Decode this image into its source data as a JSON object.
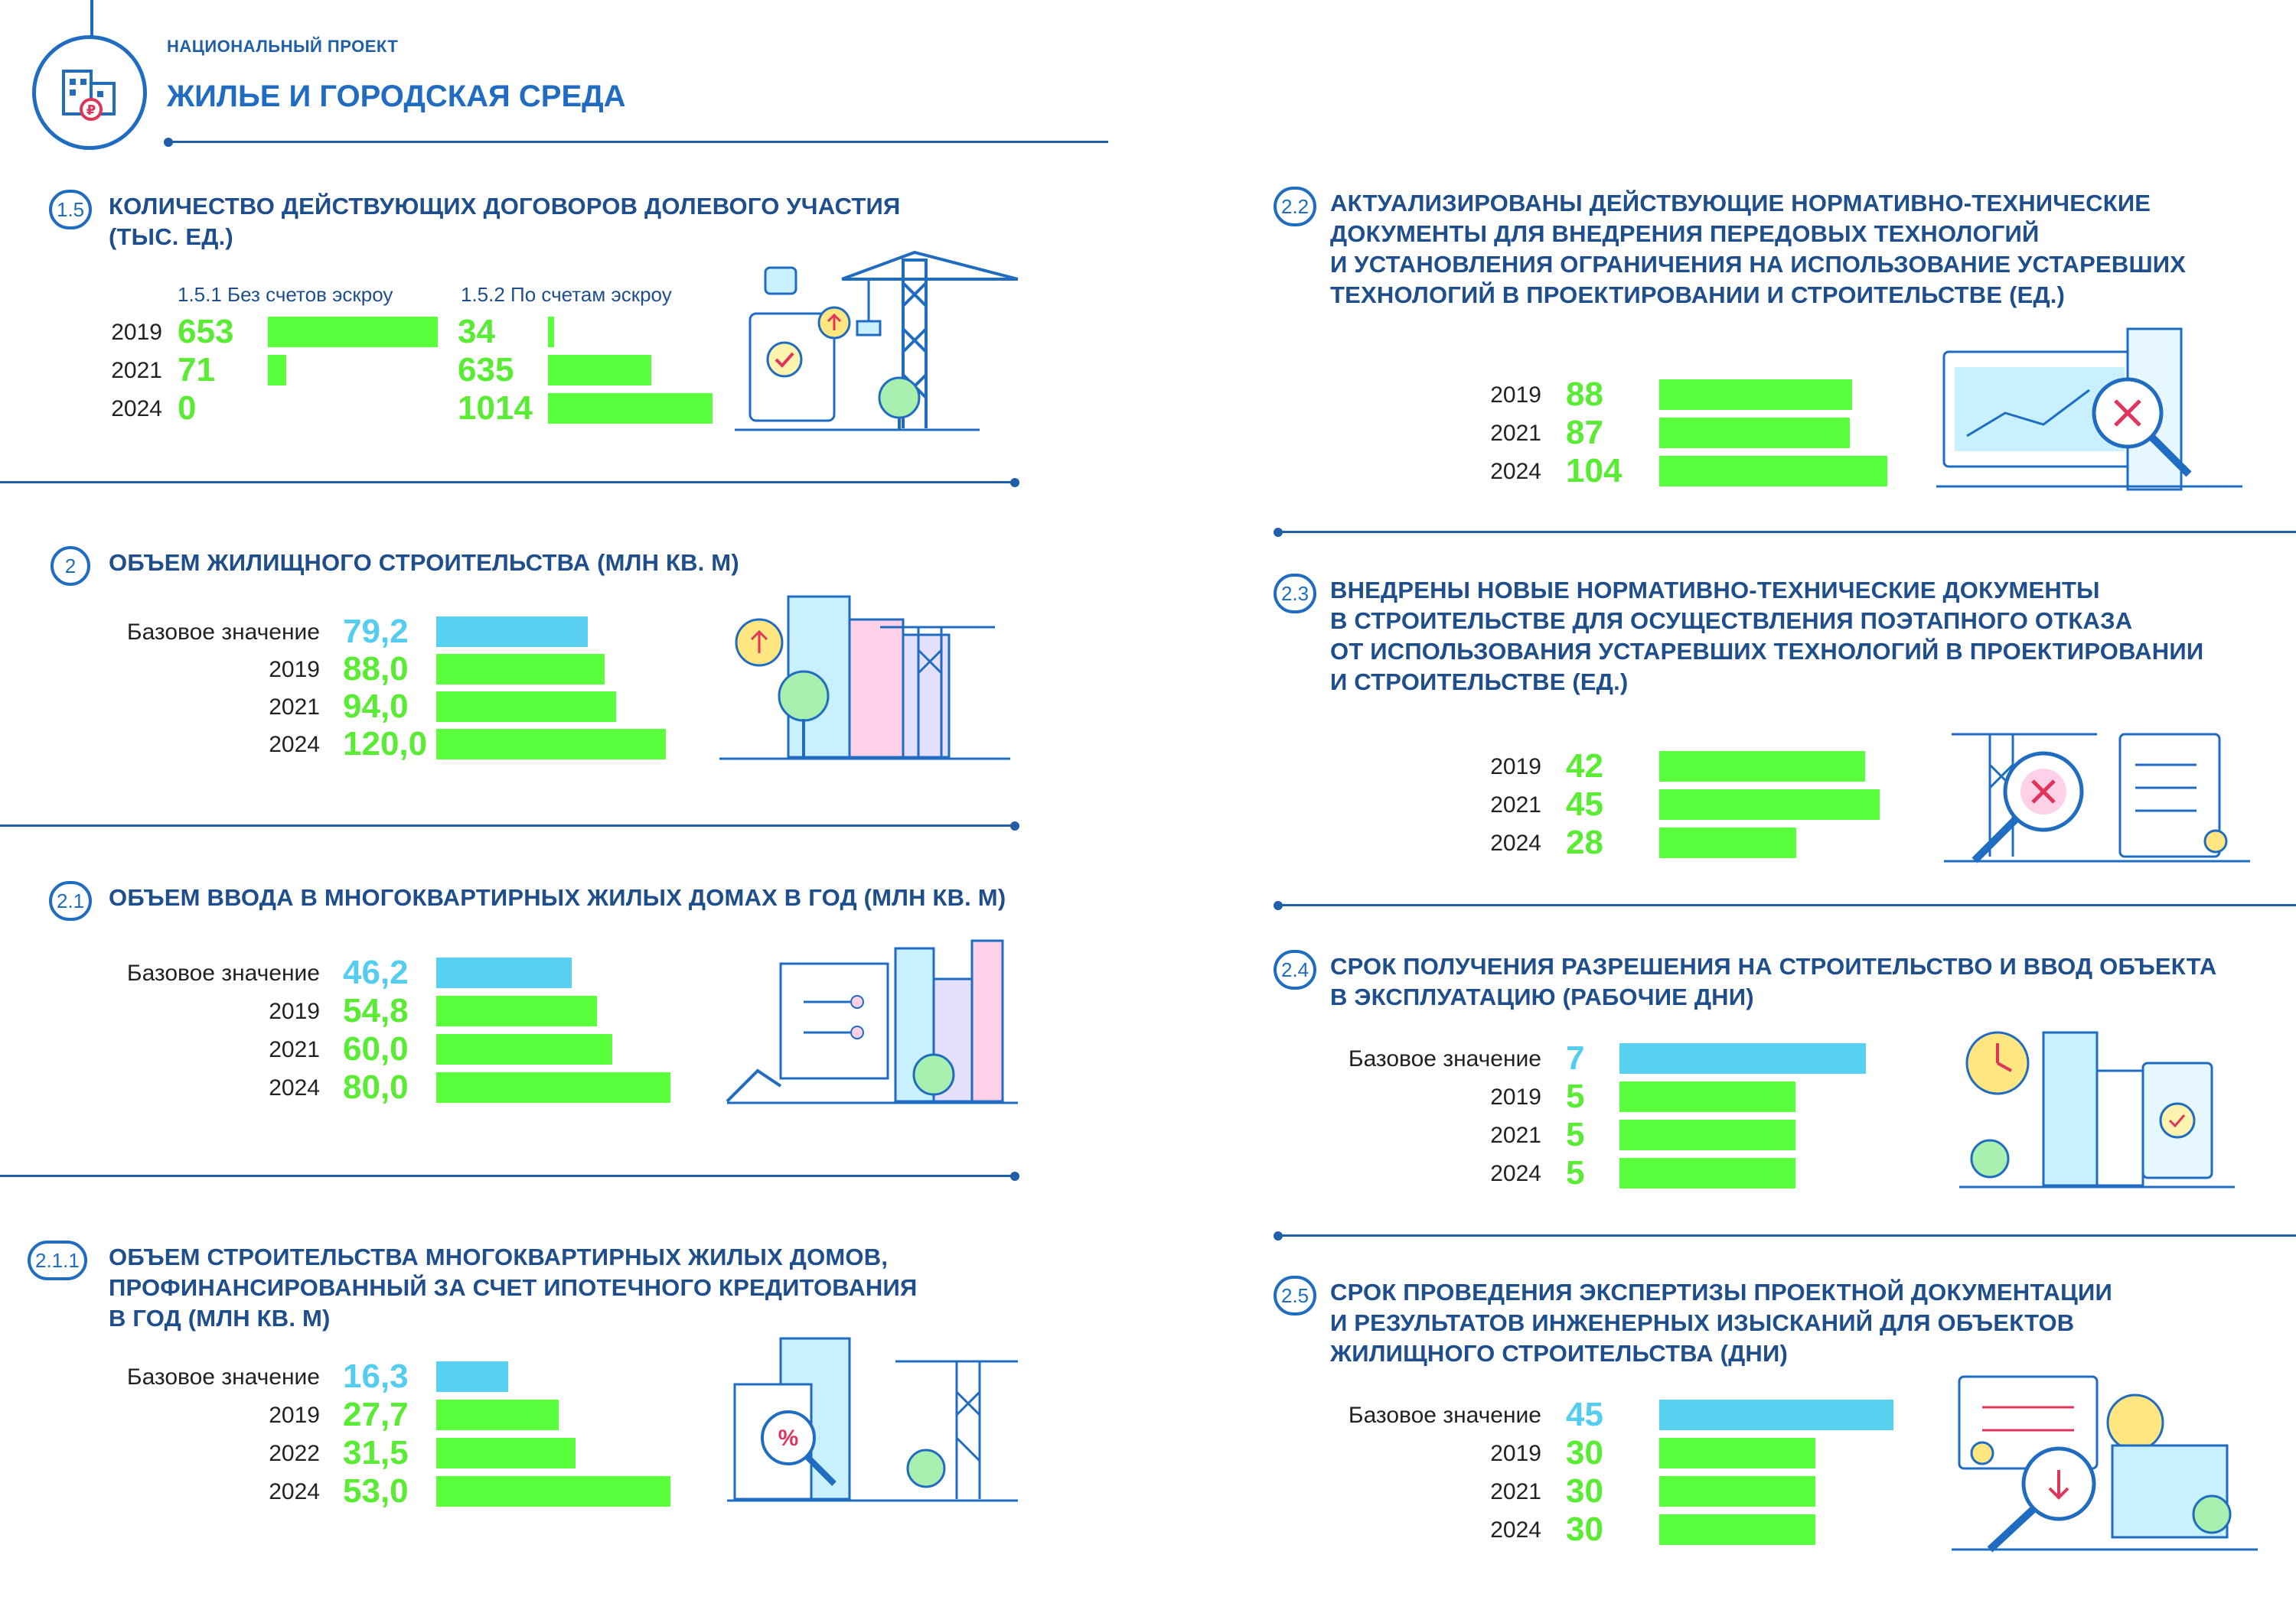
{
  "header": {
    "project_label": "НАЦИОНАЛЬНЫЙ ПРОЕКТ",
    "project_title": "ЖИЛЬЕ И ГОРОДСКАЯ СРЕДА"
  },
  "colors": {
    "accent": "#1f6cc0",
    "bar_green": "#5aff3e",
    "bar_blue": "#5ad0f0",
    "value_green": "#5aeb34",
    "value_blue": "#55cdf0"
  },
  "sections": {
    "s1_5": {
      "badge": "1.5",
      "title1": "КОЛИЧЕСТВО ДЕЙСТВУЮЩИХ ДОГОВОРОВ ДОЛЕВОГО УЧАСТИЯ",
      "title2": "(ТЫС. ЕД.)",
      "sub1": "1.5.1 Без счетов эскроу",
      "sub2": "1.5.2 По счетам эскроу"
    },
    "s2": {
      "badge": "2",
      "title1": "ОБЪЕМ ЖИЛИЩНОГО СТРОИТЕЛЬСТВА (МЛН КВ. М)"
    },
    "s2_1": {
      "badge": "2.1",
      "title1": "ОБЪЕМ ВВОДА В МНОГОКВАРТИРНЫХ ЖИЛЫХ ДОМАХ В ГОД (МЛН КВ. М)"
    },
    "s2_1_1": {
      "badge": "2.1.1",
      "title1": "ОБЪЕМ СТРОИТЕЛЬСТВА МНОГОКВАРТИРНЫХ ЖИЛЫХ ДОМОВ,",
      "title2": "ПРОФИНАНСИРОВАННЫЙ ЗА СЧЕТ ИПОТЕЧНОГО КРЕДИТОВАНИЯ",
      "title3": "В ГОД (МЛН КВ. М)"
    },
    "s2_2": {
      "badge": "2.2",
      "title1": "АКТУАЛИЗИРОВАНЫ ДЕЙСТВУЮЩИЕ НОРМАТИВНО-ТЕХНИЧЕСКИЕ",
      "title2": "ДОКУМЕНТЫ ДЛЯ ВНЕДРЕНИЯ ПЕРЕДОВЫХ ТЕХНОЛОГИЙ",
      "title3": "И УСТАНОВЛЕНИЯ ОГРАНИЧЕНИЯ НА ИСПОЛЬЗОВАНИЕ УСТАРЕВШИХ",
      "title4": "ТЕХНОЛОГИЙ В ПРОЕКТИРОВАНИИ И СТРОИТЕЛЬСТВЕ (ЕД.)"
    },
    "s2_3": {
      "badge": "2.3",
      "title1": "ВНЕДРЕНЫ НОВЫЕ НОРМАТИВНО-ТЕХНИЧЕСКИЕ ДОКУМЕНТЫ",
      "title2": "В СТРОИТЕЛЬСТВЕ ДЛЯ ОСУЩЕСТВЛЕНИЯ ПОЭТАПНОГО ОТКАЗА",
      "title3": "ОТ ИСПОЛЬЗОВАНИЯ УСТАРЕВШИХ ТЕХНОЛОГИЙ В ПРОЕКТИРОВАНИИ",
      "title4": "И СТРОИТЕЛЬСТВЕ (ЕД.)"
    },
    "s2_4": {
      "badge": "2.4",
      "title1": "СРОК ПОЛУЧЕНИЯ РАЗРЕШЕНИЯ НА СТРОИТЕЛЬСТВО И ВВОД ОБЪЕКТА",
      "title2": "В ЭКСПЛУАТАЦИЮ (РАБОЧИЕ ДНИ)"
    },
    "s2_5": {
      "badge": "2.5",
      "title1": "СРОК ПРОВЕДЕНИЯ ЭКСПЕРТИЗЫ ПРОЕКТНОЙ ДОКУМЕНТАЦИИ",
      "title2": "И РЕЗУЛЬТАТОВ ИНЖЕНЕРНЫХ ИЗЫСКАНИЙ ДЛЯ ОБЪЕКТОВ",
      "title3": "ЖИЛИЩНОГО СТРОИТЕЛЬСТВА (ДНИ)"
    }
  },
  "chart_data": [
    {
      "id": "c1_5_1",
      "type": "bar",
      "orientation": "horizontal",
      "title": "1.5.1 Без счетов эскроу",
      "categories": [
        "2019",
        "2021",
        "2024"
      ],
      "values": [
        653,
        71,
        0
      ],
      "labels": [
        "653",
        "71",
        "0"
      ],
      "value_max": 653
    },
    {
      "id": "c1_5_2",
      "type": "bar",
      "orientation": "horizontal",
      "title": "1.5.2 По счетам эскроу",
      "categories": [
        "2019",
        "2021",
        "2024"
      ],
      "values": [
        34,
        635,
        1014
      ],
      "labels": [
        "34",
        "635",
        "1014"
      ],
      "value_max": 1014
    },
    {
      "id": "c2",
      "type": "bar",
      "orientation": "horizontal",
      "title": "ОБЪЕМ ЖИЛИЩНОГО СТРОИТЕЛЬСТВА (МЛН КВ. М)",
      "categories": [
        "Базовое значение",
        "2019",
        "2021",
        "2024"
      ],
      "values": [
        79.2,
        88.0,
        94.0,
        120.0
      ],
      "labels": [
        "79,2",
        "88,0",
        "94,0",
        "120,0"
      ],
      "value_max": 120
    },
    {
      "id": "c2_1",
      "type": "bar",
      "orientation": "horizontal",
      "title": "ОБЪЕМ ВВОДА В МНОГОКВАРТИРНЫХ ЖИЛЫХ ДОМАХ В ГОД (МЛН КВ. М)",
      "categories": [
        "Базовое значение",
        "2019",
        "2021",
        "2024"
      ],
      "values": [
        46.2,
        54.8,
        60.0,
        80.0
      ],
      "labels": [
        "46,2",
        "54,8",
        "60,0",
        "80,0"
      ],
      "value_max": 80
    },
    {
      "id": "c2_1_1",
      "type": "bar",
      "orientation": "horizontal",
      "title": "ОБЪЕМ СТРОИТЕЛЬСТВА МНОГОКВАРТИРНЫХ ЖИЛЫХ ДОМОВ, ПРОФИНАНСИРОВАННЫЙ ЗА СЧЕТ ИПОТЕЧНОГО КРЕДИТОВАНИЯ В ГОД (МЛН КВ. М)",
      "categories": [
        "Базовое значение",
        "2019",
        "2022",
        "2024"
      ],
      "values": [
        16.3,
        27.7,
        31.5,
        53.0
      ],
      "labels": [
        "16,3",
        "27,7",
        "31,5",
        "53,0"
      ],
      "value_max": 53
    },
    {
      "id": "c2_2",
      "type": "bar",
      "orientation": "horizontal",
      "title": "АКТУАЛИЗИРОВАНЫ ДЕЙСТВУЮЩИЕ НОРМАТИВНО-ТЕХНИЧЕСКИЕ ДОКУМЕНТЫ (ЕД.)",
      "categories": [
        "2019",
        "2021",
        "2024"
      ],
      "values": [
        88,
        87,
        104
      ],
      "labels": [
        "88",
        "87",
        "104"
      ],
      "value_max": 104
    },
    {
      "id": "c2_3",
      "type": "bar",
      "orientation": "horizontal",
      "title": "ВНЕДРЕНЫ НОВЫЕ НОРМАТИВНО-ТЕХНИЧЕСКИЕ ДОКУМЕНТЫ (ЕД.)",
      "categories": [
        "2019",
        "2021",
        "2024"
      ],
      "values": [
        42,
        45,
        28
      ],
      "labels": [
        "42",
        "45",
        "28"
      ],
      "value_max": 45
    },
    {
      "id": "c2_4",
      "type": "bar",
      "orientation": "horizontal",
      "title": "СРОК ПОЛУЧЕНИЯ РАЗРЕШЕНИЯ НА СТРОИТЕЛЬСТВО (РАБОЧИЕ ДНИ)",
      "categories": [
        "Базовое значение",
        "2019",
        "2021",
        "2024"
      ],
      "values": [
        7,
        5,
        5,
        5
      ],
      "labels": [
        "7",
        "5",
        "5",
        "5"
      ],
      "value_max": 7
    },
    {
      "id": "c2_5",
      "type": "bar",
      "orientation": "horizontal",
      "title": "СРОК ПРОВЕДЕНИЯ ЭКСПЕРТИЗЫ (ДНИ)",
      "categories": [
        "Базовое значение",
        "2019",
        "2021",
        "2024"
      ],
      "values": [
        45,
        30,
        30,
        30
      ],
      "labels": [
        "45",
        "30",
        "30",
        "30"
      ],
      "value_max": 45
    }
  ]
}
